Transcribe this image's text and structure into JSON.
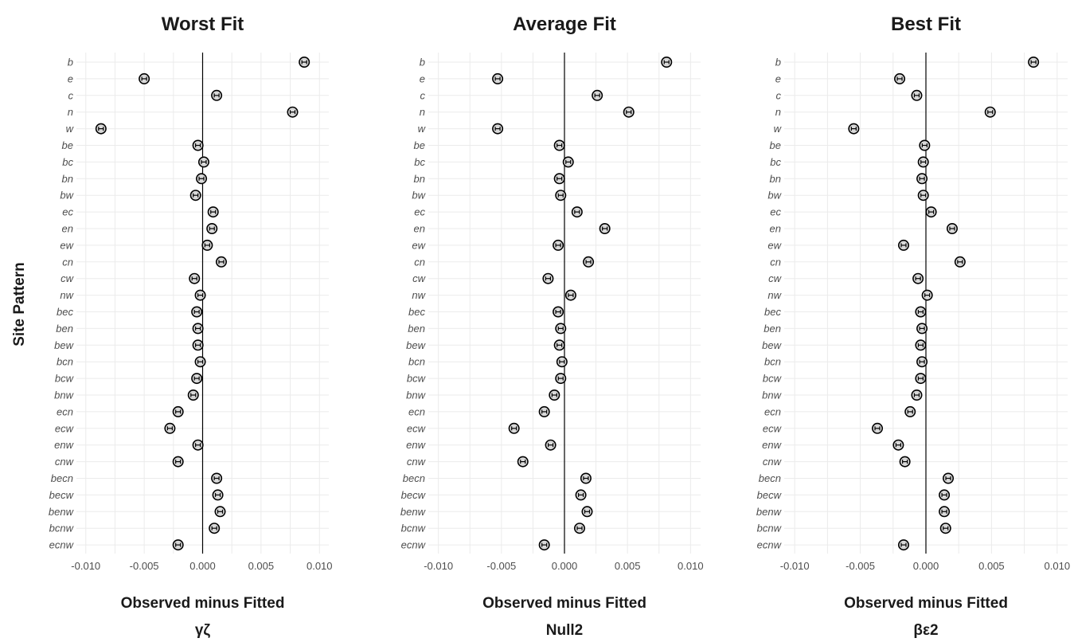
{
  "figure": {
    "ylabel": "Site Pattern"
  },
  "chart_data": [
    {
      "type": "scatter",
      "title": "Worst Fit",
      "xlabel": "Observed minus Fitted",
      "subtitle": "γζ",
      "categories": [
        "b",
        "e",
        "c",
        "n",
        "w",
        "be",
        "bc",
        "bn",
        "bw",
        "ec",
        "en",
        "ew",
        "cn",
        "cw",
        "nw",
        "bec",
        "ben",
        "bew",
        "bcn",
        "bcw",
        "bnw",
        "ecn",
        "ecw",
        "enw",
        "cnw",
        "becn",
        "becw",
        "benw",
        "bcnw",
        "ecnw"
      ],
      "values": [
        0.0087,
        -0.005,
        0.0012,
        0.0077,
        -0.0087,
        -0.0004,
        0.0001,
        -0.0001,
        -0.0006,
        0.0009,
        0.0008,
        0.0004,
        0.0016,
        -0.0007,
        -0.0002,
        -0.0005,
        -0.0004,
        -0.0004,
        -0.0002,
        -0.0005,
        -0.0008,
        -0.0021,
        -0.0028,
        -0.0004,
        -0.0021,
        0.0012,
        0.0013,
        0.0015,
        0.001,
        -0.0021
      ],
      "xlim": [
        -0.0108,
        0.0108
      ],
      "xticks": [
        "-0.010",
        "-0.005",
        "0.000",
        "0.005",
        "0.010"
      ],
      "xtick_values": [
        -0.01,
        -0.005,
        0.0,
        0.005,
        0.01
      ],
      "grid": true
    },
    {
      "type": "scatter",
      "title": "Average Fit",
      "xlabel": "Observed minus Fitted",
      "subtitle": "Null2",
      "categories": [
        "b",
        "e",
        "c",
        "n",
        "w",
        "be",
        "bc",
        "bn",
        "bw",
        "ec",
        "en",
        "ew",
        "cn",
        "cw",
        "nw",
        "bec",
        "ben",
        "bew",
        "bcn",
        "bcw",
        "bnw",
        "ecn",
        "ecw",
        "enw",
        "cnw",
        "becn",
        "becw",
        "benw",
        "bcnw",
        "ecnw"
      ],
      "values": [
        0.0081,
        -0.0053,
        0.0026,
        0.0051,
        -0.0053,
        -0.0004,
        0.0003,
        -0.0004,
        -0.0003,
        0.001,
        0.0032,
        -0.0005,
        0.0019,
        -0.0013,
        0.0005,
        -0.0005,
        -0.0003,
        -0.0004,
        -0.0002,
        -0.0003,
        -0.0008,
        -0.0016,
        -0.004,
        -0.0011,
        -0.0033,
        0.0017,
        0.0013,
        0.0018,
        0.0012,
        -0.0016
      ],
      "xlim": [
        -0.0108,
        0.0108
      ],
      "xticks": [
        "-0.010",
        "-0.005",
        "0.000",
        "0.005",
        "0.010"
      ],
      "xtick_values": [
        -0.01,
        -0.005,
        0.0,
        0.005,
        0.01
      ],
      "grid": true
    },
    {
      "type": "scatter",
      "title": "Best Fit",
      "xlabel": "Observed minus Fitted",
      "subtitle": "βε2",
      "categories": [
        "b",
        "e",
        "c",
        "n",
        "w",
        "be",
        "bc",
        "bn",
        "bw",
        "ec",
        "en",
        "ew",
        "cn",
        "cw",
        "nw",
        "bec",
        "ben",
        "bew",
        "bcn",
        "bcw",
        "bnw",
        "ecn",
        "ecw",
        "enw",
        "cnw",
        "becn",
        "becw",
        "benw",
        "bcnw",
        "ecnw"
      ],
      "values": [
        0.0082,
        -0.002,
        -0.0007,
        0.0049,
        -0.0055,
        -0.0001,
        -0.0002,
        -0.0003,
        -0.0002,
        0.0004,
        0.002,
        -0.0017,
        0.0026,
        -0.0006,
        0.0001,
        -0.0004,
        -0.0003,
        -0.0004,
        -0.0003,
        -0.0004,
        -0.0007,
        -0.0012,
        -0.0037,
        -0.0021,
        -0.0016,
        0.0017,
        0.0014,
        0.0014,
        0.0015,
        -0.0017
      ],
      "xlim": [
        -0.0108,
        0.0108
      ],
      "xticks": [
        "-0.010",
        "-0.005",
        "0.000",
        "0.005",
        "0.010"
      ],
      "xtick_values": [
        -0.01,
        -0.005,
        0.0,
        0.005,
        0.01
      ],
      "grid": true
    }
  ]
}
